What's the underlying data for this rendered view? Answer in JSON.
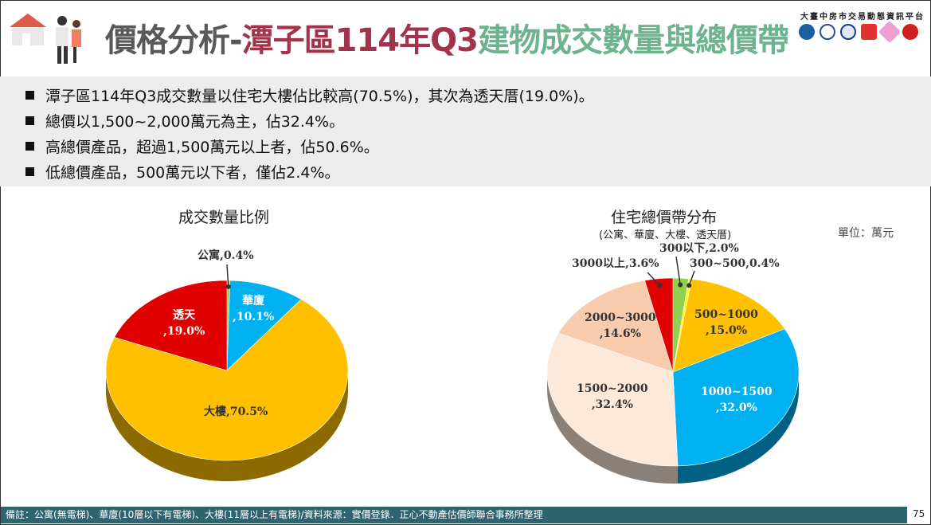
{
  "header": {
    "title_part1": "價格分析-",
    "title_part2": "潭子區114年Q3",
    "title_part3": "建物成交數量與總價帶",
    "platform": "大臺中房市交易動態資訊平台"
  },
  "bullets": [
    "潭子區114年Q3成交數量以住宅大樓佔比較高(70.5%)，其次為透天厝(19.0%)。",
    "總價以1,500~2,000萬元為主，佔32.4%。",
    "高總價產品，超過1,500萬元以上者，佔50.6%。",
    "低總價產品，500萬元以下者，僅佔2.4%。"
  ],
  "chart_data": [
    {
      "type": "pie",
      "title": "成交數量比例",
      "categories": [
        "公寓",
        "華廈",
        "大樓",
        "透天"
      ],
      "values": [
        0.4,
        10.1,
        70.5,
        19.0
      ],
      "colors": [
        "#92d050",
        "#00b0f0",
        "#ffc000",
        "#e00000"
      ],
      "labels": [
        "公寓,0.4%",
        "華廈\n,10.1%",
        "大樓,70.5%",
        "透天\n,19.0%"
      ]
    },
    {
      "type": "pie",
      "title": "住宅總價帶分布",
      "subtitle": "(公寓、華廈、大樓、透天厝)",
      "unit": "單位：萬元",
      "categories": [
        "300以下",
        "300~500",
        "500~1000",
        "1000~1500",
        "1500~2000",
        "2000~3000",
        "3000以上"
      ],
      "values": [
        2.0,
        0.4,
        15.0,
        32.0,
        32.4,
        14.6,
        3.6
      ],
      "colors": [
        "#92d050",
        "#ffff00",
        "#ffc000",
        "#00b0f0",
        "#fde9d9",
        "#f8cbad",
        "#e00000"
      ],
      "labels": [
        "300以下,2.0%",
        "300~500,0.4%",
        "500~1000\n,15.0%",
        "1000~1500\n,32.0%",
        "1500~2000\n,32.4%",
        "2000~3000\n,14.6%",
        "3000以上,3.6%"
      ]
    }
  ],
  "footer": {
    "note": "備註：公寓(無電梯)、華廈(10層以下有電梯)、大樓(11層以上有電梯)/資料來源：實價登錄．正心不動產估價師聯合事務所整理",
    "page": "75"
  }
}
